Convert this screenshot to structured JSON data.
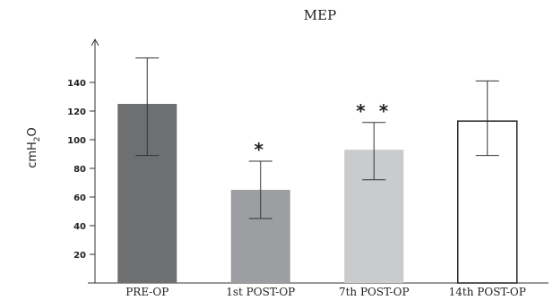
{
  "chart_data": {
    "type": "bar",
    "title": "MEP",
    "ylabel": "cmH",
    "ylabel_subscript": "2",
    "ylabel_suffix": "O",
    "xlabel": "",
    "categories": [
      "PRE-OP",
      "1st POST-OP",
      "7th POST-OP",
      "14th POST-OP"
    ],
    "values": [
      125,
      65,
      93,
      113
    ],
    "error_upper": [
      157,
      85,
      112,
      141
    ],
    "error_lower": [
      89,
      45,
      72,
      89
    ],
    "annotations": [
      "",
      "*",
      "**",
      ""
    ],
    "yticks": [
      20,
      40,
      60,
      80,
      100,
      120,
      140
    ],
    "ylim": [
      0,
      170
    ],
    "grid": false,
    "colors": [
      "#6e6f71",
      "#9c9ea1",
      "#c9cbcd",
      "#ffffff"
    ]
  }
}
